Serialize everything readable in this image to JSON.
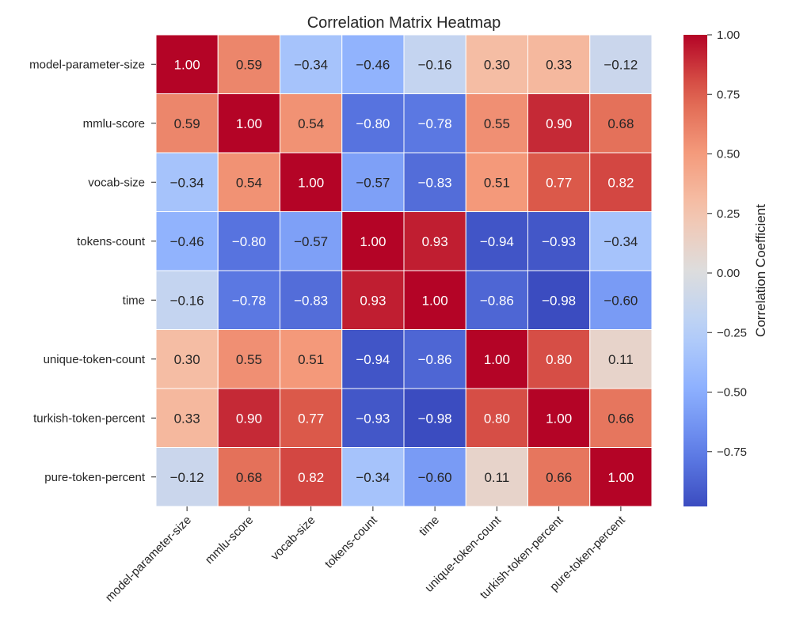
{
  "chart_data": {
    "type": "heatmap",
    "title": "Correlation Matrix Heatmap",
    "xlabel": "",
    "ylabel": "",
    "rows": [
      "model-parameter-size",
      "mmlu-score",
      "vocab-size",
      "tokens-count",
      "time",
      "unique-token-count",
      "turkish-token-percent",
      "pure-token-percent"
    ],
    "columns": [
      "model-parameter-size",
      "mmlu-score",
      "vocab-size",
      "tokens-count",
      "time",
      "unique-token-count",
      "turkish-token-percent",
      "pure-token-percent"
    ],
    "values": [
      [
        1.0,
        0.59,
        -0.34,
        -0.46,
        -0.16,
        0.3,
        0.33,
        -0.12
      ],
      [
        0.59,
        1.0,
        0.54,
        -0.8,
        -0.78,
        0.55,
        0.9,
        0.68
      ],
      [
        -0.34,
        0.54,
        1.0,
        -0.57,
        -0.83,
        0.51,
        0.77,
        0.82
      ],
      [
        -0.46,
        -0.8,
        -0.57,
        1.0,
        0.93,
        -0.94,
        -0.93,
        -0.34
      ],
      [
        -0.16,
        -0.78,
        -0.83,
        0.93,
        1.0,
        -0.86,
        -0.98,
        -0.6
      ],
      [
        0.3,
        0.55,
        0.51,
        -0.94,
        -0.86,
        1.0,
        0.8,
        0.11
      ],
      [
        0.33,
        0.9,
        0.77,
        -0.93,
        -0.98,
        0.8,
        1.0,
        0.66
      ],
      [
        -0.12,
        0.68,
        0.82,
        -0.34,
        -0.6,
        0.11,
        0.66,
        1.0
      ]
    ],
    "colormap": "coolwarm",
    "color_range": [
      -0.98,
      1.0
    ],
    "colorbar": {
      "label": "Correlation Coefficient",
      "ticks": [
        1.0,
        0.75,
        0.5,
        0.25,
        0.0,
        -0.25,
        -0.5,
        -0.75
      ],
      "tick_labels": [
        "1.00",
        "0.75",
        "0.50",
        "0.25",
        "0.00",
        "−0.25",
        "−0.50",
        "−0.75"
      ]
    },
    "annotations": true,
    "annotation_format": "2 decimals"
  }
}
